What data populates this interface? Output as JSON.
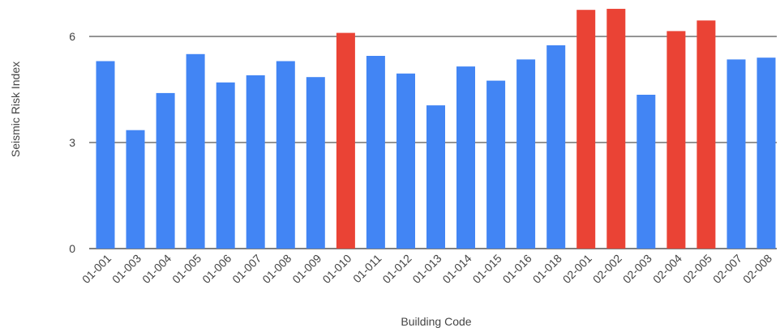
{
  "chart_data": {
    "type": "bar",
    "title": "",
    "xlabel": "Building Code",
    "ylabel": "Seismic Risk Index",
    "ylim": [
      0,
      6.8
    ],
    "yticks": [
      0,
      3,
      6
    ],
    "grid": true,
    "categories": [
      "01-001",
      "01-003",
      "01-004",
      "01-005",
      "01-006",
      "01-007",
      "01-008",
      "01-009",
      "01-010",
      "01-011",
      "01-012",
      "01-013",
      "01-014",
      "01-015",
      "01-016",
      "01-018",
      "02-001",
      "02-002",
      "02-003",
      "02-004",
      "02-005",
      "02-007",
      "02-008"
    ],
    "values": [
      5.3,
      3.35,
      4.4,
      5.5,
      4.7,
      4.9,
      5.3,
      4.85,
      6.1,
      5.45,
      4.95,
      4.05,
      5.15,
      4.75,
      5.35,
      5.75,
      6.75,
      6.78,
      4.35,
      6.15,
      6.45,
      5.35,
      5.4
    ],
    "highlighted": [
      false,
      false,
      false,
      false,
      false,
      false,
      false,
      false,
      true,
      false,
      false,
      false,
      false,
      false,
      false,
      false,
      true,
      true,
      false,
      true,
      true,
      false,
      false
    ],
    "colors": {
      "default": "#4285f4",
      "highlight": "#ea4335",
      "grid": "#555555",
      "text": "#444444"
    }
  }
}
